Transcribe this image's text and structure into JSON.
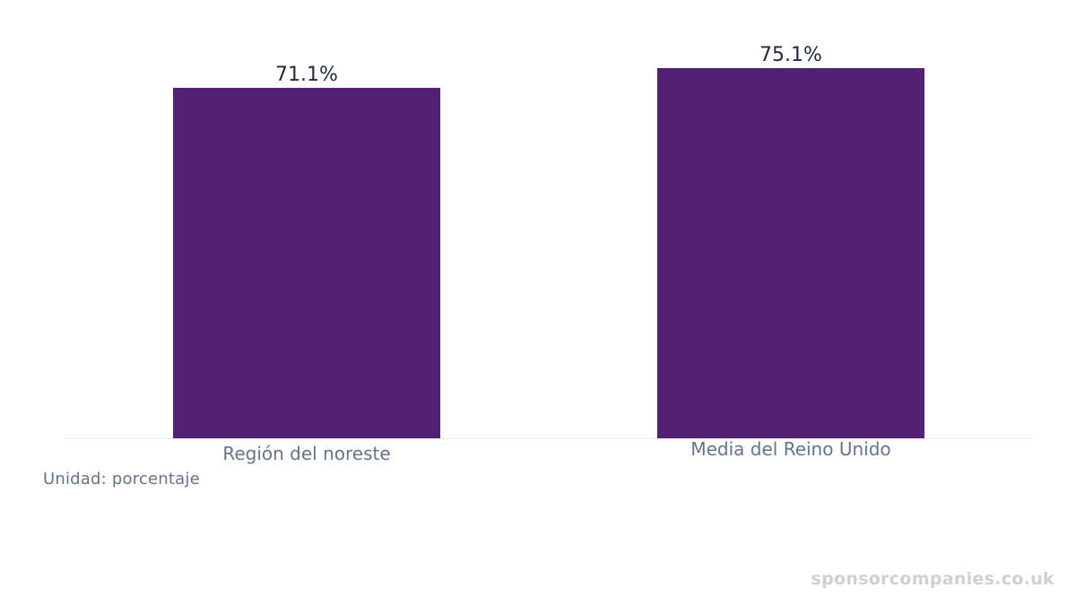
{
  "chart_data": {
    "type": "bar",
    "categories": [
      "Región del noreste",
      "Media del Reino Unido"
    ],
    "values": [
      71.1,
      75.1
    ],
    "value_labels": [
      "71.1%",
      "75.1%"
    ],
    "title": "",
    "xlabel": "",
    "ylabel": "",
    "ylim": [
      0,
      75.1
    ],
    "grid": false,
    "legend": "none",
    "unit_text": "Unidad: porcentaje",
    "colors": {
      "bar": "#522175",
      "value_label": "#1e293b",
      "category_label": "#64748b",
      "baseline": "#eeeeee"
    }
  },
  "watermark": "sponsorcompanies.co.uk"
}
